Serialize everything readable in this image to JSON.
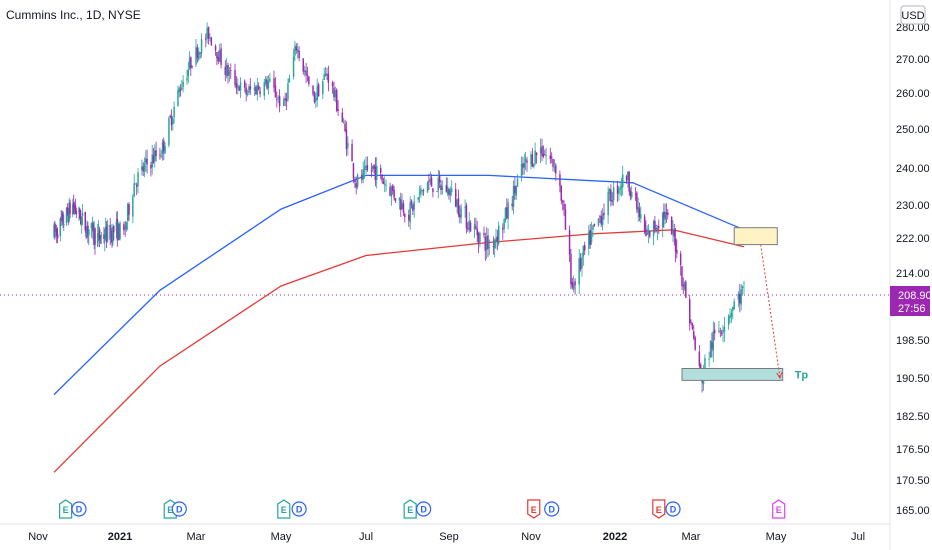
{
  "title": "Cummins Inc., 1D, NYSE",
  "currency": "USD",
  "colors": {
    "up": "#26a69a",
    "down": "#9c27b0",
    "ma_blue": "#2962ff",
    "ma_red": "#e53935",
    "price_line": "#9c27b0",
    "zone_sell": "#fff3c4",
    "zone_tp": "#b2dfdb",
    "earnings": [
      "#26a69a",
      "#e53935",
      "#e040fb"
    ],
    "dividend": "#2962ff"
  },
  "chart_data": {
    "type": "candlestick",
    "y_axis_ticks": [
      "280.00",
      "270.00",
      "260.00",
      "250.00",
      "240.00",
      "230.00",
      "222.00",
      "214.00",
      "198.50",
      "190.50",
      "182.50",
      "176.50",
      "170.50",
      "165.00"
    ],
    "x_axis_ticks": [
      "Nov",
      "2021",
      "Mar",
      "May",
      "Jul",
      "Sep",
      "Nov",
      "2022",
      "Mar",
      "May",
      "Jul"
    ],
    "bold_ticks": [
      "2021",
      "2022"
    ],
    "price_points": [
      [
        "2020-10-19",
        223
      ],
      [
        "2020-10-29",
        226
      ],
      [
        "2020-11-09",
        230
      ],
      [
        "2020-11-23",
        225
      ],
      [
        "2020-12-08",
        222
      ],
      [
        "2020-12-28",
        224
      ],
      [
        "2021-01-04",
        223
      ],
      [
        "2021-01-12",
        236
      ],
      [
        "2021-01-22",
        241
      ],
      [
        "2021-02-03",
        245
      ],
      [
        "2021-02-17",
        262
      ],
      [
        "2021-02-26",
        270
      ],
      [
        "2021-03-10",
        278
      ],
      [
        "2021-03-22",
        267
      ],
      [
        "2021-04-05",
        260
      ],
      [
        "2021-04-22",
        263
      ],
      [
        "2021-05-03",
        256
      ],
      [
        "2021-05-12",
        274
      ],
      [
        "2021-05-24",
        258
      ],
      [
        "2021-06-03",
        266
      ],
      [
        "2021-06-14",
        252
      ],
      [
        "2021-06-24",
        236
      ],
      [
        "2021-07-06",
        240
      ],
      [
        "2021-07-20",
        234
      ],
      [
        "2021-08-02",
        228
      ],
      [
        "2021-08-16",
        236
      ],
      [
        "2021-09-01",
        234
      ],
      [
        "2021-09-15",
        226
      ],
      [
        "2021-10-01",
        220
      ],
      [
        "2021-10-12",
        226
      ],
      [
        "2021-10-26",
        240
      ],
      [
        "2021-11-08",
        245
      ],
      [
        "2021-11-20",
        240
      ],
      [
        "2021-12-01",
        211
      ],
      [
        "2021-12-14",
        222
      ],
      [
        "2021-12-28",
        232
      ],
      [
        "2022-01-10",
        238
      ],
      [
        "2022-01-25",
        222
      ],
      [
        "2022-02-08",
        228
      ],
      [
        "2022-02-18",
        220
      ],
      [
        "2022-03-01",
        202
      ],
      [
        "2022-03-08",
        190
      ],
      [
        "2022-03-16",
        198
      ],
      [
        "2022-03-30",
        206
      ],
      [
        "2022-04-08",
        210
      ]
    ],
    "moving_averages": [
      {
        "color_key": "ma_blue",
        "points": [
          [
            "2020-10-19",
            187
          ],
          [
            "2021-02-01",
            210
          ],
          [
            "2021-05-01",
            229
          ],
          [
            "2021-07-01",
            238
          ],
          [
            "2021-10-01",
            238
          ],
          [
            "2022-01-15",
            236
          ],
          [
            "2022-04-08",
            224
          ]
        ]
      },
      {
        "color_key": "ma_red",
        "points": [
          [
            "2020-10-19",
            172
          ],
          [
            "2021-02-01",
            193
          ],
          [
            "2021-05-01",
            211
          ],
          [
            "2021-07-01",
            218
          ],
          [
            "2021-10-01",
            221
          ],
          [
            "2021-12-15",
            223
          ],
          [
            "2022-02-15",
            224
          ],
          [
            "2022-04-08",
            220
          ]
        ]
      }
    ],
    "last_price": "208.90",
    "countdown": "27:56",
    "zones": [
      {
        "name": "sell-zone",
        "date_from": "2022-04-01",
        "date_to": "2022-05-02",
        "price_low": 220.5,
        "price_high": 224.5,
        "color_key": "zone_sell"
      },
      {
        "name": "take-profit-zone",
        "date_from": "2022-02-22",
        "date_to": "2022-05-06",
        "price_low": 190,
        "price_high": 192.5,
        "color_key": "zone_tp",
        "label": "Tp"
      }
    ],
    "projection": {
      "from": [
        "2022-04-20",
        220.5
      ],
      "to": [
        "2022-05-04",
        190.5
      ]
    },
    "events": [
      {
        "kind": "E",
        "date": "2020-11-01",
        "color_index": 0
      },
      {
        "kind": "D",
        "date": "2020-11-16",
        "color_index": 0
      },
      {
        "kind": "E",
        "date": "2021-02-09",
        "color_index": 0
      },
      {
        "kind": "D",
        "date": "2021-02-16",
        "color_index": 0
      },
      {
        "kind": "E",
        "date": "2021-05-03",
        "color_index": 0
      },
      {
        "kind": "D",
        "date": "2021-05-14",
        "color_index": 0
      },
      {
        "kind": "E",
        "date": "2021-08-03",
        "color_index": 0
      },
      {
        "kind": "D",
        "date": "2021-08-13",
        "color_index": 0
      },
      {
        "kind": "E",
        "date": "2021-11-03",
        "color_index": 1
      },
      {
        "kind": "D",
        "date": "2021-11-16",
        "color_index": 0
      },
      {
        "kind": "E",
        "date": "2022-02-04",
        "color_index": 1
      },
      {
        "kind": "D",
        "date": "2022-02-15",
        "color_index": 0
      },
      {
        "kind": "E",
        "date": "2022-05-03",
        "color_index": 2
      }
    ]
  }
}
